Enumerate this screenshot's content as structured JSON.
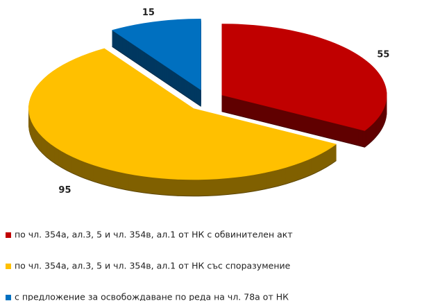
{
  "chart_data": {
    "type": "pie",
    "categories": [
      "по чл. 354а, ал.3, 5 и чл. 354в, ал.1 от НК с обвинителен акт",
      "по чл. 354а, ал.3, 5 и чл. 354в, ал.1 от НК със споразумение",
      "с предложение за освобождаване по реда на чл. 78а от НК"
    ],
    "values": [
      55,
      95,
      15
    ],
    "colors": [
      "#c00000",
      "#ffc000",
      "#0070c0"
    ],
    "legend": "bottom"
  }
}
